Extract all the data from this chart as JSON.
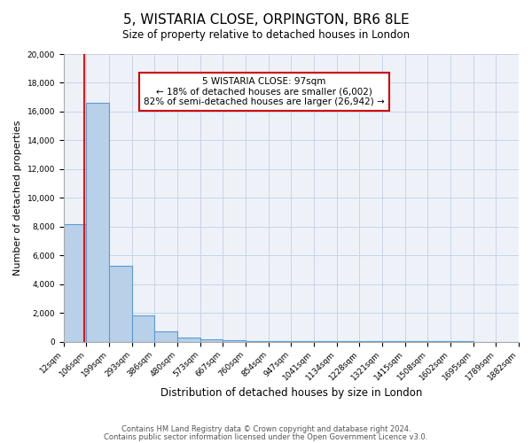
{
  "title": "5, WISTARIA CLOSE, ORPINGTON, BR6 8LE",
  "subtitle": "Size of property relative to detached houses in London",
  "xlabel": "Distribution of detached houses by size in London",
  "ylabel": "Number of detached properties",
  "bin_labels": [
    "12sqm",
    "106sqm",
    "199sqm",
    "293sqm",
    "386sqm",
    "480sqm",
    "573sqm",
    "667sqm",
    "760sqm",
    "854sqm",
    "947sqm",
    "1041sqm",
    "1134sqm",
    "1228sqm",
    "1321sqm",
    "1415sqm",
    "1508sqm",
    "1602sqm",
    "1695sqm",
    "1789sqm",
    "1882sqm"
  ],
  "bar_values": [
    8150,
    16600,
    5300,
    1820,
    720,
    290,
    175,
    100,
    40,
    20,
    15,
    12,
    10,
    8,
    7,
    6,
    5,
    5,
    4,
    4
  ],
  "bar_color": "#b8d0e8",
  "bar_edge_color": "#5b9bd5",
  "property_line_color": "#ff0000",
  "ylim": [
    0,
    20000
  ],
  "yticks": [
    0,
    2000,
    4000,
    6000,
    8000,
    10000,
    12000,
    14000,
    16000,
    18000,
    20000
  ],
  "annotation_title": "5 WISTARIA CLOSE: 97sqm",
  "annotation_line1": "← 18% of detached houses are smaller (6,002)",
  "annotation_line2": "82% of semi-detached houses are larger (26,942) →",
  "footer_line1": "Contains HM Land Registry data © Crown copyright and database right 2024.",
  "footer_line2": "Contains public sector information licensed under the Open Government Licence v3.0.",
  "background_color": "#eef2f8",
  "grid_color": "#c8d4e8"
}
